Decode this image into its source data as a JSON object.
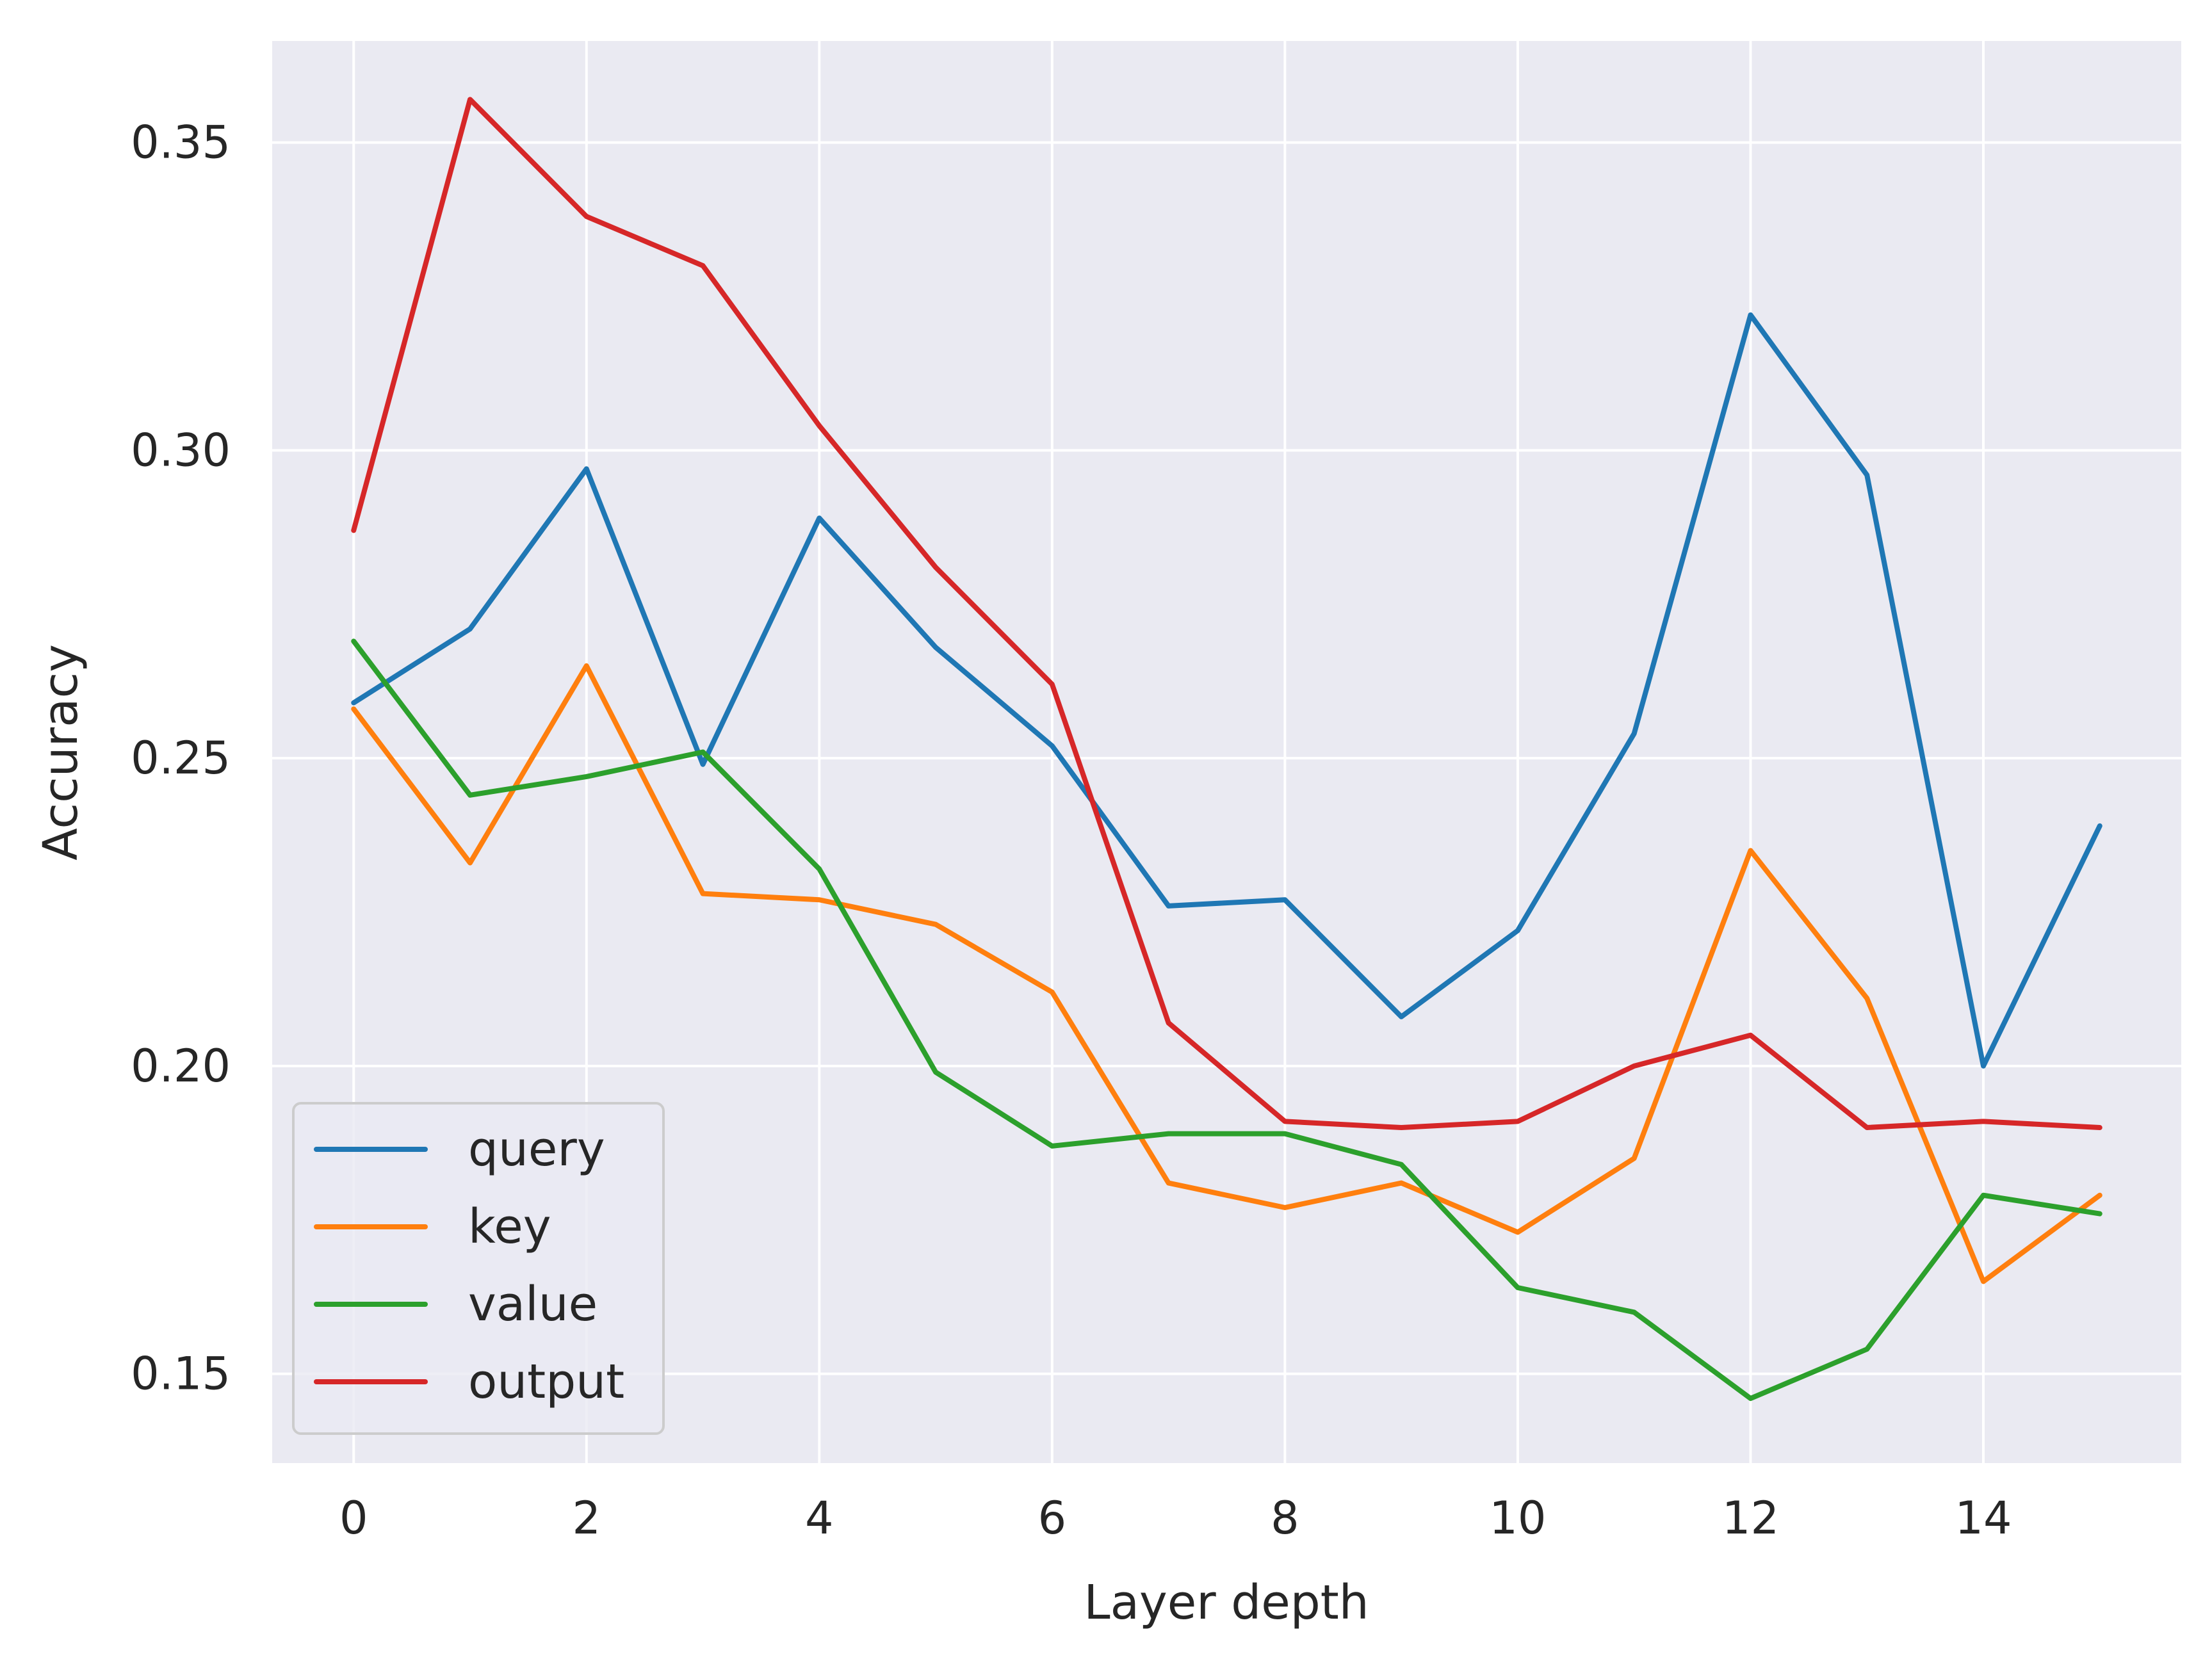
{
  "chart_data": {
    "type": "line",
    "xlabel": "Layer depth",
    "ylabel": "Accuracy",
    "xlim": [
      -0.7,
      15.7
    ],
    "ylim": [
      0.1355,
      0.3665
    ],
    "x_ticks": [
      0,
      2,
      4,
      6,
      8,
      10,
      12,
      14
    ],
    "x_tick_labels": [
      "0",
      "2",
      "4",
      "6",
      "8",
      "10",
      "12",
      "14"
    ],
    "y_ticks": [
      0.15,
      0.2,
      0.25,
      0.3,
      0.35
    ],
    "y_tick_labels": [
      "0.15",
      "0.20",
      "0.25",
      "0.30",
      "0.35"
    ],
    "grid": true,
    "legend_position": "lower-left",
    "background_color": "#eaeaf2",
    "x": [
      0,
      1,
      2,
      3,
      4,
      5,
      6,
      7,
      8,
      9,
      10,
      11,
      12,
      13,
      14,
      15
    ],
    "series": [
      {
        "name": "query",
        "color": "#1f77b4",
        "values": [
          0.259,
          0.271,
          0.297,
          0.249,
          0.289,
          0.268,
          0.252,
          0.226,
          0.227,
          0.208,
          0.222,
          0.254,
          0.322,
          0.296,
          0.2,
          0.239
        ]
      },
      {
        "name": "key",
        "color": "#ff7f0e",
        "values": [
          0.258,
          0.233,
          0.265,
          0.228,
          0.227,
          0.223,
          0.212,
          0.181,
          0.177,
          0.181,
          0.173,
          0.185,
          0.235,
          0.211,
          0.165,
          0.179
        ]
      },
      {
        "name": "value",
        "color": "#2ca02c",
        "values": [
          0.269,
          0.244,
          0.247,
          0.251,
          0.232,
          0.199,
          0.187,
          0.189,
          0.189,
          0.184,
          0.164,
          0.16,
          0.146,
          0.154,
          0.179,
          0.176
        ]
      },
      {
        "name": "output",
        "color": "#d62728",
        "values": [
          0.287,
          0.357,
          0.338,
          0.33,
          0.304,
          0.281,
          0.262,
          0.207,
          0.191,
          0.19,
          0.191,
          0.2,
          0.205,
          0.19,
          0.191,
          0.19
        ]
      }
    ]
  }
}
